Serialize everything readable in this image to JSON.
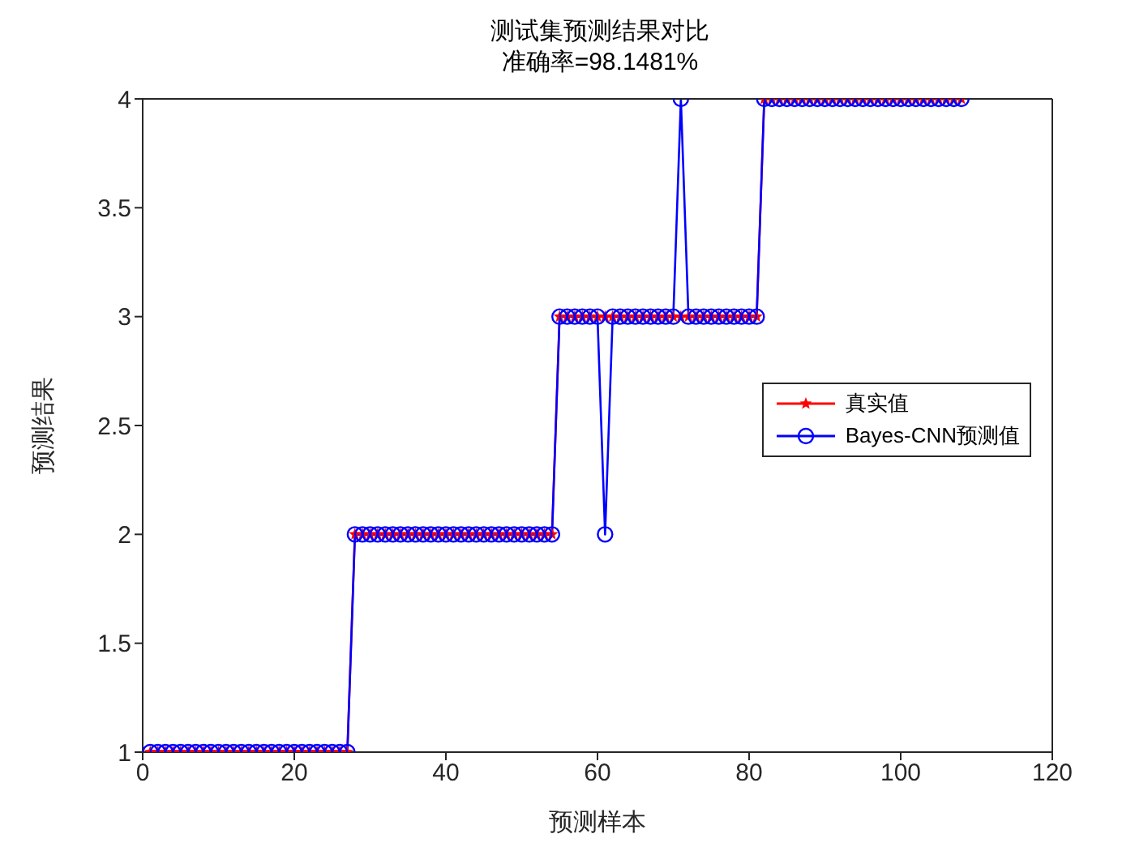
{
  "chart_data": {
    "type": "line",
    "title": "测试集预测结果对比",
    "subtitle": "准确率=98.1481%",
    "xlabel": "预测样本",
    "ylabel": "预测结果",
    "x": [
      1,
      2,
      3,
      4,
      5,
      6,
      7,
      8,
      9,
      10,
      11,
      12,
      13,
      14,
      15,
      16,
      17,
      18,
      19,
      20,
      21,
      22,
      23,
      24,
      25,
      26,
      27,
      28,
      29,
      30,
      31,
      32,
      33,
      34,
      35,
      36,
      37,
      38,
      39,
      40,
      41,
      42,
      43,
      44,
      45,
      46,
      47,
      48,
      49,
      50,
      51,
      52,
      53,
      54,
      55,
      56,
      57,
      58,
      59,
      60,
      61,
      62,
      63,
      64,
      65,
      66,
      67,
      68,
      69,
      70,
      71,
      72,
      73,
      74,
      75,
      76,
      77,
      78,
      79,
      80,
      81,
      82,
      83,
      84,
      85,
      86,
      87,
      88,
      89,
      90,
      91,
      92,
      93,
      94,
      95,
      96,
      97,
      98,
      99,
      100,
      101,
      102,
      103,
      104,
      105,
      106,
      107,
      108
    ],
    "series": [
      {
        "name": "真实值",
        "color": "#ff0000",
        "marker": "star",
        "line_style": "solid",
        "values": [
          1,
          1,
          1,
          1,
          1,
          1,
          1,
          1,
          1,
          1,
          1,
          1,
          1,
          1,
          1,
          1,
          1,
          1,
          1,
          1,
          1,
          1,
          1,
          1,
          1,
          1,
          1,
          2,
          2,
          2,
          2,
          2,
          2,
          2,
          2,
          2,
          2,
          2,
          2,
          2,
          2,
          2,
          2,
          2,
          2,
          2,
          2,
          2,
          2,
          2,
          2,
          2,
          2,
          2,
          3,
          3,
          3,
          3,
          3,
          3,
          3,
          3,
          3,
          3,
          3,
          3,
          3,
          3,
          3,
          3,
          3,
          3,
          3,
          3,
          3,
          3,
          3,
          3,
          3,
          3,
          3,
          4,
          4,
          4,
          4,
          4,
          4,
          4,
          4,
          4,
          4,
          4,
          4,
          4,
          4,
          4,
          4,
          4,
          4,
          4,
          4,
          4,
          4,
          4,
          4,
          4,
          4,
          4
        ]
      },
      {
        "name": "Bayes-CNN预测值",
        "color": "#0000ff",
        "marker": "circle",
        "line_style": "solid",
        "values": [
          1,
          1,
          1,
          1,
          1,
          1,
          1,
          1,
          1,
          1,
          1,
          1,
          1,
          1,
          1,
          1,
          1,
          1,
          1,
          1,
          1,
          1,
          1,
          1,
          1,
          1,
          1,
          2,
          2,
          2,
          2,
          2,
          2,
          2,
          2,
          2,
          2,
          2,
          2,
          2,
          2,
          2,
          2,
          2,
          2,
          2,
          2,
          2,
          2,
          2,
          2,
          2,
          2,
          2,
          3,
          3,
          3,
          3,
          3,
          3,
          2,
          3,
          3,
          3,
          3,
          3,
          3,
          3,
          3,
          3,
          4,
          3,
          3,
          3,
          3,
          3,
          3,
          3,
          3,
          3,
          3,
          4,
          4,
          4,
          4,
          4,
          4,
          4,
          4,
          4,
          4,
          4,
          4,
          4,
          4,
          4,
          4,
          4,
          4,
          4,
          4,
          4,
          4,
          4,
          4,
          4,
          4,
          4
        ]
      }
    ],
    "xlim": [
      0,
      120
    ],
    "xticks": [
      0,
      20,
      40,
      60,
      80,
      100,
      120
    ],
    "ylim": [
      1,
      4
    ],
    "yticks": [
      1,
      1.5,
      2,
      2.5,
      3,
      3.5,
      4
    ],
    "grid": false,
    "legend": "right"
  }
}
